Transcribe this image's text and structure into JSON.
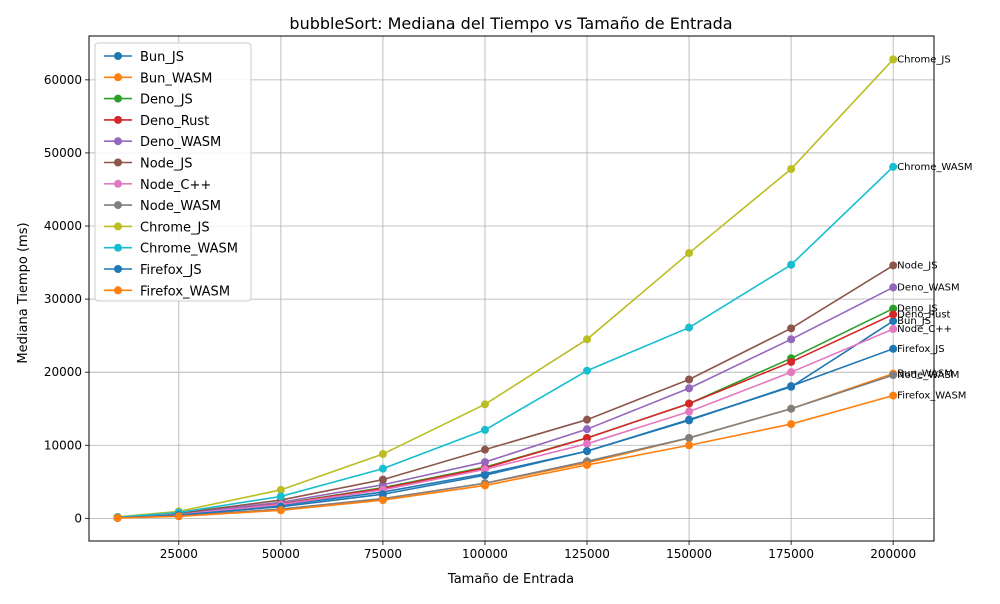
{
  "chart_data": {
    "type": "line",
    "title": "bubbleSort: Mediana del Tiempo vs Tamaño de Entrada",
    "xlabel": "Tamaño de Entrada",
    "ylabel": "Mediana Tiempo (ms)",
    "xlim": [
      3000,
      210000
    ],
    "ylim": [
      -3100,
      66000
    ],
    "xticks": [
      25000,
      50000,
      75000,
      100000,
      125000,
      150000,
      175000,
      200000
    ],
    "yticks": [
      0,
      10000,
      20000,
      30000,
      40000,
      50000,
      60000
    ],
    "grid": true,
    "legend_position": "upper-left",
    "x": [
      10000,
      25000,
      50000,
      75000,
      100000,
      125000,
      150000,
      175000,
      200000
    ],
    "series": [
      {
        "name": "Bun_JS",
        "color": "#1f77b4",
        "values": [
          80,
          500,
          1800,
          3600,
          6100,
          9200,
          13500,
          18000,
          27000
        ]
      },
      {
        "name": "Bun_WASM",
        "color": "#ff7f0e",
        "values": [
          60,
          340,
          1250,
          2700,
          4800,
          7600,
          11000,
          15000,
          19800
        ]
      },
      {
        "name": "Deno_JS",
        "color": "#2ca02c",
        "values": [
          90,
          560,
          2000,
          4200,
          7000,
          11000,
          15700,
          21900,
          28700
        ]
      },
      {
        "name": "Deno_Rust",
        "color": "#d62728",
        "values": [
          90,
          540,
          1950,
          4100,
          6900,
          11000,
          15700,
          21400,
          27900
        ]
      },
      {
        "name": "Deno_WASM",
        "color": "#9467bd",
        "values": [
          100,
          620,
          2200,
          4600,
          7700,
          12200,
          17800,
          24500,
          31600
        ]
      },
      {
        "name": "Node_JS",
        "color": "#8c564b",
        "values": [
          120,
          700,
          2500,
          5300,
          9400,
          13500,
          19000,
          26000,
          34600
        ]
      },
      {
        "name": "Node_C++",
        "color": "#e377c2",
        "values": [
          90,
          520,
          1900,
          3900,
          6700,
          10200,
          14600,
          20000,
          25900
        ]
      },
      {
        "name": "Node_WASM",
        "color": "#7f7f7f",
        "values": [
          60,
          340,
          1250,
          2700,
          4800,
          7800,
          11000,
          15000,
          19600
        ]
      },
      {
        "name": "Chrome_JS",
        "color": "#bcbd22",
        "values": [
          200,
          950,
          3900,
          8800,
          15600,
          24500,
          36300,
          47800,
          62800
        ]
      },
      {
        "name": "Chrome_WASM",
        "color": "#17becf",
        "values": [
          150,
          800,
          3000,
          6800,
          12100,
          20200,
          26100,
          34700,
          48100
        ]
      },
      {
        "name": "Firefox_JS",
        "color": "#1f77b4",
        "values": [
          70,
          450,
          1600,
          3300,
          5900,
          9200,
          13400,
          18100,
          23200
        ]
      },
      {
        "name": "Firefox_WASM",
        "color": "#ff7f0e",
        "values": [
          50,
          280,
          1100,
          2500,
          4500,
          7300,
          10000,
          12900,
          16800
        ]
      }
    ]
  }
}
